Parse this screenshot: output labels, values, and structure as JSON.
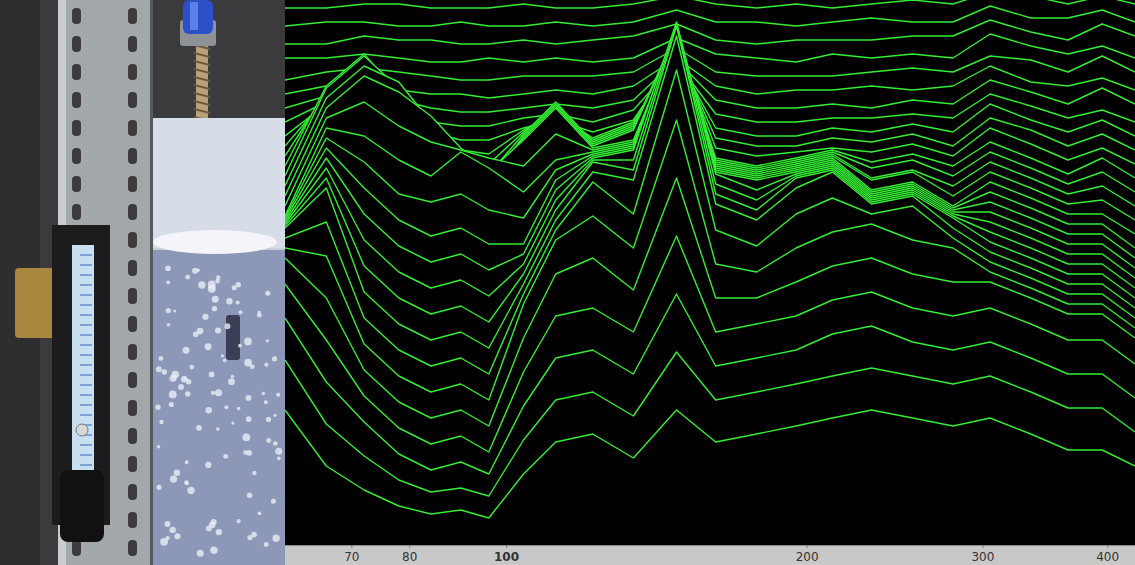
{
  "chart_data": {
    "type": "waterfall",
    "color": "#33ee33",
    "log": "x",
    "grid": false,
    "tick_labels": "x",
    "xlim": [
      60,
      426
    ],
    "xticks": [
      70,
      80,
      100,
      200,
      300,
      400
    ],
    "ylim": [
      0,
      100
    ],
    "x": [
      60,
      66,
      72,
      78,
      84,
      90,
      96,
      104,
      112,
      122,
      134,
      148,
      162,
      178,
      195,
      212,
      232,
      255,
      280,
      305,
      335,
      365,
      395,
      426
    ],
    "series": [
      {
        "values": [
          0,
          0,
          1,
          1,
          0,
          0,
          0,
          1,
          0,
          0,
          1,
          3,
          1,
          0,
          1,
          0,
          1,
          2,
          1,
          4,
          3,
          1,
          3,
          1
        ]
      },
      {
        "values": [
          0,
          1,
          1,
          0,
          0,
          1,
          0,
          0,
          1,
          0,
          1,
          4,
          1,
          1,
          0,
          1,
          2,
          1,
          1,
          5,
          2,
          2,
          4,
          1
        ]
      },
      {
        "values": [
          0,
          0,
          2,
          1,
          1,
          0,
          0,
          1,
          0,
          1,
          2,
          5,
          1,
          0,
          1,
          1,
          1,
          2,
          2,
          6,
          3,
          1,
          5,
          2
        ]
      },
      {
        "values": [
          1,
          1,
          2,
          1,
          0,
          0,
          1,
          0,
          1,
          0,
          1,
          6,
          2,
          1,
          0,
          2,
          1,
          2,
          1,
          7,
          4,
          2,
          4,
          1
        ]
      },
      {
        "values": [
          0,
          2,
          3,
          2,
          1,
          0,
          0,
          1,
          1,
          1,
          2,
          8,
          2,
          1,
          1,
          1,
          2,
          3,
          2,
          6,
          5,
          2,
          6,
          2
        ]
      },
      {
        "values": [
          1,
          3,
          4,
          2,
          1,
          1,
          0,
          1,
          2,
          1,
          3,
          10,
          3,
          1,
          2,
          2,
          3,
          2,
          3,
          8,
          4,
          3,
          5,
          2
        ]
      },
      {
        "values": [
          2,
          5,
          6,
          4,
          2,
          1,
          1,
          2,
          3,
          2,
          4,
          14,
          4,
          2,
          2,
          3,
          2,
          4,
          3,
          9,
          6,
          3,
          7,
          3
        ]
      },
      {
        "values": [
          3,
          8,
          10,
          6,
          3,
          2,
          2,
          4,
          5,
          3,
          6,
          18,
          5,
          3,
          3,
          4,
          4,
          5,
          4,
          10,
          7,
          4,
          6,
          3
        ]
      },
      {
        "values": [
          4,
          12,
          16,
          10,
          5,
          3,
          3,
          6,
          8,
          5,
          8,
          24,
          6,
          4,
          4,
          6,
          5,
          7,
          5,
          12,
          8,
          5,
          8,
          4
        ]
      },
      {
        "values": [
          6,
          18,
          24,
          16,
          8,
          5,
          4,
          10,
          14,
          8,
          12,
          30,
          8,
          6,
          6,
          8,
          7,
          9,
          6,
          13,
          10,
          6,
          9,
          5
        ]
      },
      {
        "values": [
          8,
          24,
          32,
          22,
          12,
          8,
          6,
          14,
          20,
          12,
          16,
          36,
          10,
          8,
          9,
          10,
          9,
          11,
          8,
          15,
          11,
          7,
          10,
          6
        ]
      },
      {
        "values": [
          10,
          30,
          38,
          28,
          16,
          10,
          8,
          18,
          26,
          16,
          20,
          42,
          12,
          10,
          12,
          14,
          11,
          13,
          10,
          16,
          12,
          8,
          12,
          7
        ]
      },
      {
        "values": [
          12,
          34,
          42,
          34,
          22,
          14,
          10,
          22,
          30,
          20,
          24,
          48,
          16,
          14,
          16,
          18,
          14,
          16,
          12,
          18,
          14,
          10,
          13,
          8
        ]
      },
      {
        "values": [
          14,
          36,
          44,
          40,
          30,
          20,
          16,
          26,
          34,
          24,
          28,
          52,
          20,
          18,
          20,
          22,
          16,
          18,
          14,
          20,
          16,
          12,
          14,
          9
        ]
      },
      {
        "values": [
          16,
          38,
          46,
          42,
          36,
          28,
          22,
          30,
          38,
          28,
          30,
          56,
          24,
          22,
          24,
          26,
          20,
          22,
          16,
          22,
          18,
          14,
          15,
          10
        ]
      },
      {
        "values": [
          18,
          40,
          44,
          38,
          34,
          32,
          30,
          28,
          36,
          32,
          34,
          60,
          28,
          26,
          28,
          30,
          22,
          24,
          18,
          24,
          20,
          16,
          16,
          11
        ]
      },
      {
        "values": [
          20,
          42,
          40,
          34,
          30,
          36,
          32,
          26,
          34,
          36,
          38,
          64,
          32,
          30,
          32,
          34,
          26,
          28,
          22,
          26,
          22,
          18,
          18,
          12
        ]
      },
      {
        "values": [
          24,
          44,
          38,
          30,
          28,
          30,
          26,
          24,
          36,
          40,
          42,
          70,
          36,
          34,
          36,
          38,
          30,
          32,
          26,
          28,
          24,
          20,
          20,
          14
        ]
      },
      {
        "values": [
          28,
          46,
          36,
          28,
          24,
          26,
          22,
          22,
          38,
          44,
          46,
          76,
          40,
          38,
          40,
          42,
          34,
          36,
          30,
          30,
          26,
          22,
          22,
          16
        ]
      },
      {
        "values": [
          32,
          48,
          34,
          26,
          22,
          24,
          20,
          24,
          40,
          48,
          50,
          82,
          44,
          40,
          44,
          46,
          38,
          40,
          34,
          32,
          28,
          24,
          24,
          18
        ]
      },
      {
        "values": [
          36,
          50,
          32,
          24,
          20,
          22,
          18,
          26,
          42,
          52,
          52,
          86,
          46,
          42,
          48,
          50,
          42,
          44,
          38,
          34,
          30,
          26,
          26,
          20
        ]
      },
      {
        "values": [
          40,
          52,
          30,
          22,
          18,
          20,
          16,
          28,
          44,
          56,
          54,
          90,
          48,
          44,
          52,
          54,
          46,
          48,
          42,
          36,
          32,
          28,
          28,
          22
        ]
      },
      {
        "values": [
          44,
          54,
          28,
          20,
          16,
          18,
          14,
          30,
          46,
          58,
          56,
          92,
          50,
          46,
          54,
          58,
          50,
          52,
          44,
          38,
          34,
          30,
          30,
          24
        ]
      },
      {
        "values": [
          46,
          50,
          26,
          18,
          14,
          16,
          12,
          32,
          48,
          60,
          52,
          88,
          48,
          44,
          52,
          56,
          52,
          54,
          46,
          40,
          36,
          32,
          32,
          26
        ]
      },
      {
        "values": [
          48,
          46,
          24,
          16,
          12,
          14,
          10,
          34,
          50,
          56,
          48,
          80,
          44,
          42,
          48,
          52,
          54,
          50,
          48,
          42,
          38,
          34,
          34,
          28
        ]
      },
      {
        "values": [
          50,
          40,
          22,
          14,
          10,
          12,
          8,
          30,
          46,
          50,
          42,
          70,
          40,
          40,
          44,
          48,
          50,
          46,
          44,
          44,
          40,
          36,
          36,
          30
        ]
      },
      {
        "values": [
          48,
          34,
          20,
          12,
          8,
          10,
          6,
          26,
          40,
          42,
          36,
          60,
          36,
          38,
          40,
          44,
          46,
          42,
          40,
          42,
          38,
          34,
          34,
          28
        ]
      },
      {
        "values": [
          44,
          28,
          18,
          10,
          6,
          8,
          5,
          22,
          34,
          36,
          30,
          50,
          32,
          34,
          36,
          40,
          42,
          38,
          36,
          38,
          34,
          30,
          30,
          24
        ]
      },
      {
        "values": [
          38,
          22,
          14,
          8,
          5,
          6,
          4,
          18,
          28,
          30,
          24,
          40,
          28,
          30,
          32,
          34,
          36,
          34,
          32,
          34,
          30,
          26,
          26,
          20
        ]
      },
      {
        "values": [
          30,
          16,
          10,
          6,
          4,
          5,
          3,
          14,
          22,
          24,
          18,
          30,
          22,
          24,
          26,
          28,
          30,
          28,
          26,
          28,
          24,
          20,
          20,
          16
        ]
      }
    ]
  }
}
